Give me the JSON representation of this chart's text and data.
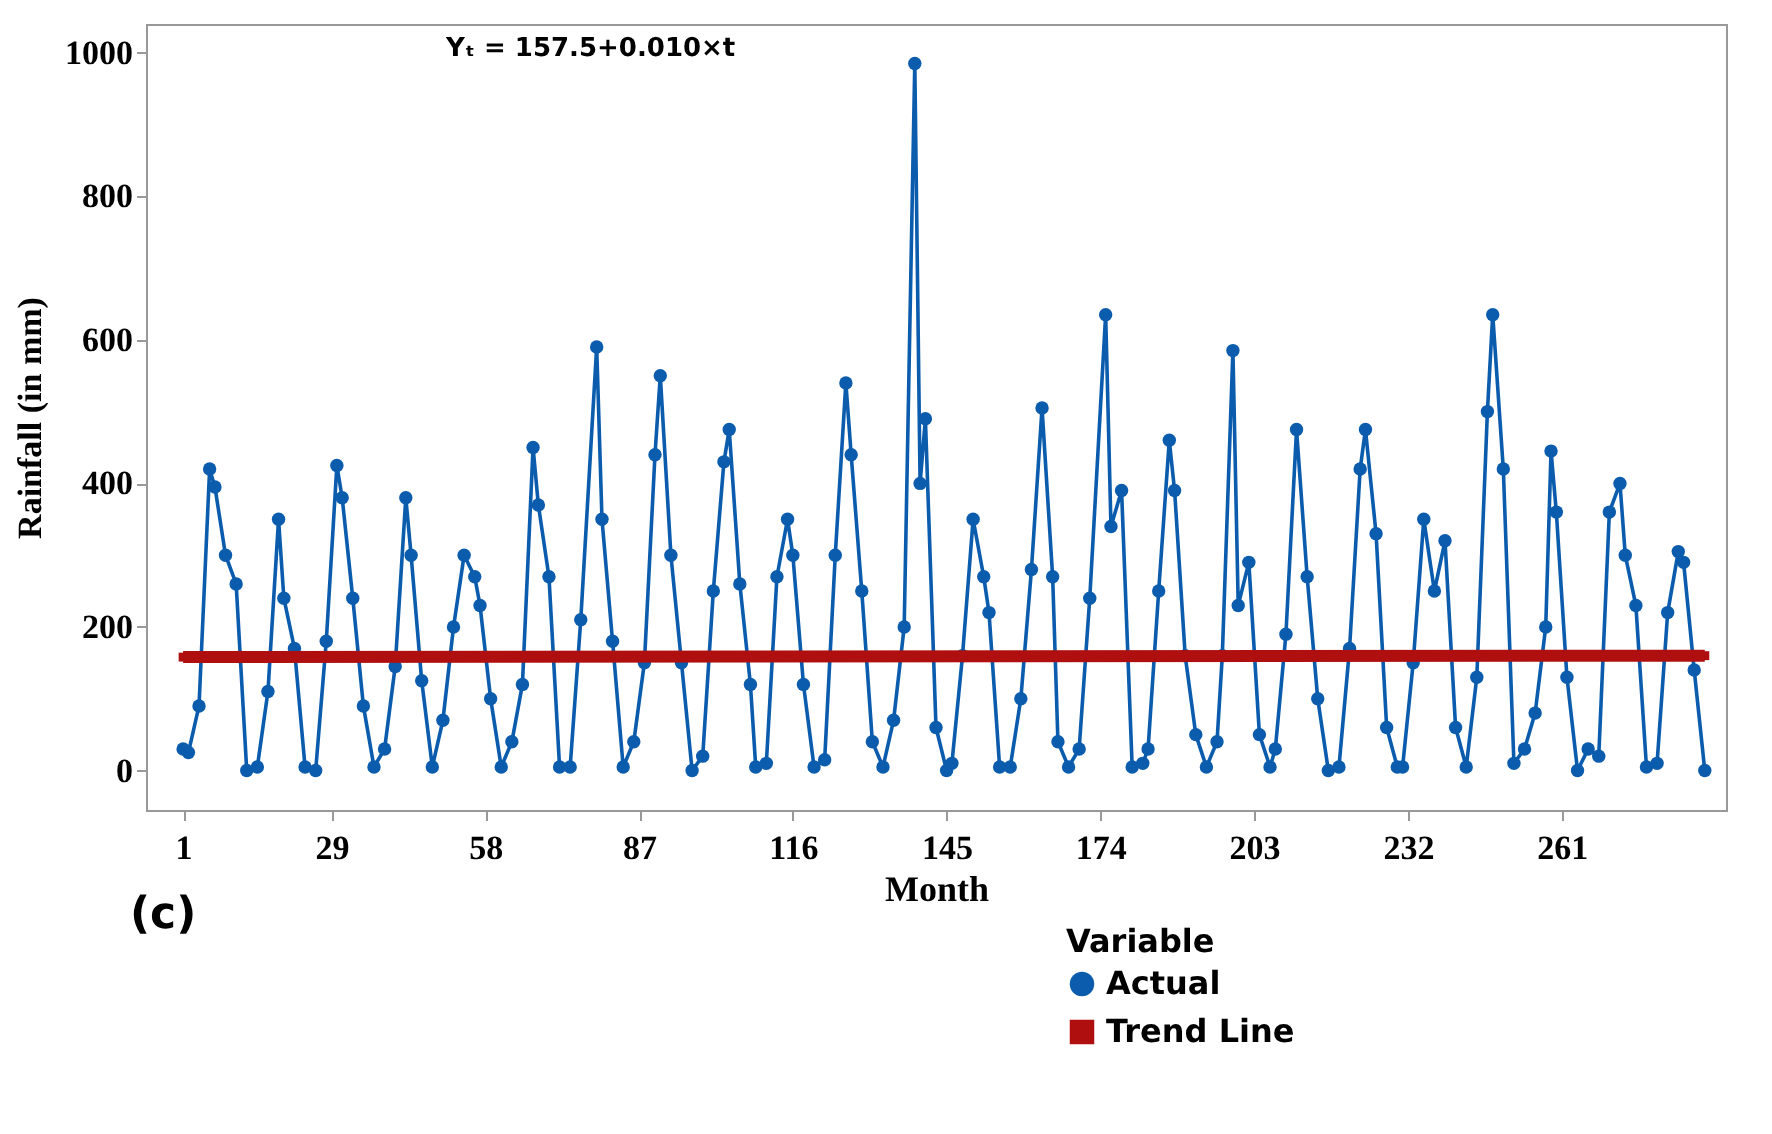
{
  "chart_data": {
    "type": "line",
    "xlabel": "Month",
    "ylabel": "Rainfall (in mm)",
    "legend_title": "Variable",
    "legend": "bottom right",
    "grid": false,
    "annotations": [
      "Yₜ = 157.5+0.010×t",
      "(c)"
    ],
    "xlim": [
      -6,
      292
    ],
    "xticks": [
      1,
      29,
      58,
      87,
      116,
      145,
      174,
      203,
      232,
      261
    ],
    "ylim": [
      -55,
      1040
    ],
    "yticks": [
      0,
      200,
      400,
      600,
      800,
      1000
    ],
    "series": [
      {
        "name": "Actual",
        "color": "#0b5cad",
        "marker": "circle",
        "x": [
          1,
          2,
          4,
          6,
          7,
          9,
          11,
          13,
          15,
          17,
          19,
          20,
          22,
          24,
          26,
          28,
          30,
          31,
          33,
          35,
          37,
          39,
          41,
          43,
          44,
          46,
          48,
          50,
          52,
          54,
          56,
          57,
          59,
          61,
          63,
          65,
          67,
          68,
          70,
          72,
          74,
          76,
          79,
          80,
          82,
          84,
          86,
          88,
          90,
          91,
          93,
          95,
          97,
          99,
          101,
          103,
          104,
          106,
          108,
          109,
          111,
          113,
          115,
          116,
          118,
          120,
          122,
          124,
          126,
          127,
          129,
          131,
          133,
          135,
          137,
          139,
          140,
          141,
          143,
          145,
          146,
          148,
          150,
          152,
          153,
          155,
          157,
          159,
          161,
          163,
          165,
          166,
          168,
          170,
          172,
          175,
          176,
          178,
          180,
          182,
          183,
          185,
          187,
          188,
          190,
          192,
          194,
          196,
          197,
          199,
          200,
          202,
          204,
          206,
          207,
          209,
          211,
          213,
          215,
          217,
          219,
          221,
          223,
          224,
          226,
          228,
          230,
          231,
          233,
          235,
          237,
          239,
          241,
          243,
          245,
          247,
          248,
          250,
          252,
          254,
          256,
          258,
          259,
          260,
          262,
          264,
          266,
          268,
          270,
          272,
          273,
          275,
          277,
          279,
          281,
          283,
          284,
          286,
          288
        ],
        "values": [
          30,
          25,
          90,
          420,
          395,
          300,
          260,
          0,
          5,
          110,
          350,
          240,
          170,
          5,
          0,
          180,
          425,
          380,
          240,
          90,
          5,
          30,
          145,
          380,
          300,
          125,
          5,
          70,
          200,
          300,
          270,
          230,
          100,
          5,
          40,
          120,
          450,
          370,
          270,
          5,
          5,
          210,
          590,
          350,
          180,
          5,
          40,
          150,
          440,
          550,
          300,
          150,
          0,
          20,
          250,
          430,
          475,
          260,
          120,
          5,
          10,
          270,
          350,
          300,
          120,
          5,
          15,
          300,
          540,
          440,
          250,
          40,
          5,
          70,
          200,
          985,
          400,
          490,
          60,
          0,
          10,
          160,
          350,
          270,
          220,
          5,
          5,
          100,
          280,
          505,
          270,
          40,
          5,
          30,
          240,
          635,
          340,
          390,
          5,
          10,
          30,
          250,
          460,
          390,
          160,
          50,
          5,
          40,
          160,
          585,
          230,
          290,
          50,
          5,
          30,
          190,
          475,
          270,
          100,
          0,
          5,
          170,
          420,
          475,
          330,
          60,
          5,
          5,
          150,
          350,
          250,
          320,
          60,
          5,
          130,
          500,
          635,
          420,
          10,
          30,
          80,
          200,
          445,
          360,
          130,
          0,
          30,
          20,
          360,
          400,
          300,
          230,
          5,
          10,
          220,
          305,
          290,
          140,
          0
        ]
      },
      {
        "name": "Trend Line",
        "color": "#b00f0f",
        "marker": "square",
        "x": [
          1,
          288
        ],
        "values": [
          158,
          160
        ]
      }
    ]
  }
}
